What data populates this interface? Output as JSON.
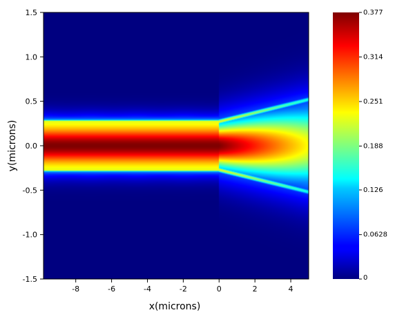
{
  "chart_data": {
    "type": "heatmap",
    "title": "",
    "xlabel": "x(microns)",
    "ylabel": "y(microns)",
    "xlim": [
      -9.8,
      5.0
    ],
    "ylim": [
      -1.5,
      1.5
    ],
    "xticks": [
      -8,
      -6,
      -4,
      -2,
      0,
      2,
      4
    ],
    "yticks": [
      -1.5,
      -1.0,
      -0.5,
      0.0,
      0.5,
      1.0,
      1.5
    ],
    "ytick_labels": [
      "-1.5",
      "-1.0",
      "-0.5",
      "0.0",
      "0.5",
      "1.0",
      "1.5"
    ],
    "colormap": "jet",
    "colorbar": {
      "min": 0,
      "max": 0.377,
      "ticks": [
        0,
        0.0628,
        0.126,
        0.188,
        0.251,
        0.314,
        0.377
      ],
      "tick_labels": [
        "0",
        "0.0628",
        "0.126",
        "0.188",
        "0.251",
        "0.314",
        "0.377"
      ]
    },
    "field": {
      "description_free": true,
      "waveguide_half_width": 0.27,
      "taper_start_x": 0.0,
      "taper_end_x": 5.0,
      "taper_end_half_width": 0.52,
      "peak_value": 0.377
    }
  }
}
